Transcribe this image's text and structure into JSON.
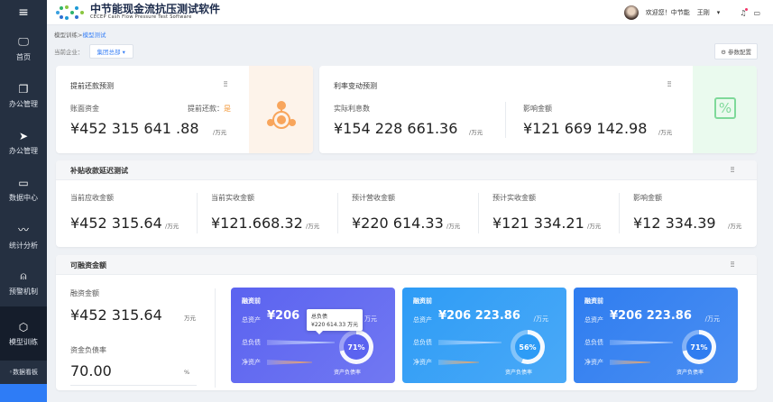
{
  "app": {
    "title": "中节能现金流抗压测试软件",
    "subtitle": "CECEP Cash Flow Pressure Test Software"
  },
  "header": {
    "welcome": "欢迎您！中节能",
    "username": "王刚",
    "icons": [
      "bell-icon",
      "message-icon"
    ]
  },
  "sidebar": {
    "items": [
      {
        "label": "首页",
        "icon": "monitor-icon"
      },
      {
        "label": "办公管理",
        "icon": "copy-icon"
      },
      {
        "label": "办公管理",
        "icon": "send-icon"
      },
      {
        "label": "数据中心",
        "icon": "folder-icon"
      },
      {
        "label": "统计分析",
        "icon": "chart-line-icon"
      },
      {
        "label": "预警机制",
        "icon": "alarm-icon"
      },
      {
        "label": "模型训练",
        "icon": "cube-icon",
        "active": true
      }
    ],
    "sub": "数据看板"
  },
  "breadcrumb": {
    "parent": "模型训练",
    "current": "模型测试"
  },
  "company": {
    "label": "当前企业：",
    "value": "集团总部"
  },
  "param_btn": "参数配置",
  "card1": {
    "title": "提前还款预测",
    "label": "账面资金",
    "flag_label": "提前还款：",
    "flag": "是",
    "value": "¥452 315 641 .88",
    "unit": "/万元",
    "accent": "#f4a460"
  },
  "card2": {
    "title": "利率变动预测",
    "label1": "实际利息数",
    "value1": "¥154 228 661.36",
    "unit1": "/万元",
    "label2": "影响金额",
    "value2": "¥121 669 142.98",
    "unit2": "/万元",
    "accent": "#6fcf8f"
  },
  "section2": {
    "title": "补贴收款延迟测试",
    "items": [
      {
        "label": "当前应收金额",
        "value": "¥452 315.64",
        "unit": "/万元"
      },
      {
        "label": "当前实收金额",
        "value": "¥121.668.32",
        "unit": "/万元"
      },
      {
        "label": "预计营收金额",
        "value": "¥220 614.33",
        "unit": "/万元"
      },
      {
        "label": "预计实收金额",
        "value": "¥121 334.21",
        "unit": "/万元"
      },
      {
        "label": "影响金额",
        "value": "¥12 334.39",
        "unit": "/万元"
      }
    ]
  },
  "section3": {
    "title": "可融资金额",
    "left": {
      "label1": "融资金额",
      "value1": "¥452 315.64",
      "unit1": "万元",
      "label2": "资金负债率",
      "value2": "70.00",
      "unit2": "%"
    },
    "cards": [
      {
        "title": "融资前",
        "assets_label": "总资产",
        "assets": "¥206",
        "unit": "万元",
        "debt_label": "总负债",
        "net_label": "净资产",
        "ratio": 71,
        "ratio_text": "71%",
        "ratio_label": "资产负债率",
        "tooltip_title": "总负债",
        "tooltip_value": "¥220 614.33",
        "tooltip_unit": "万元",
        "color": "#5b63f0"
      },
      {
        "title": "融资前",
        "assets_label": "总资产",
        "assets": "¥206 223.86",
        "unit": "/万元",
        "debt_label": "总负债",
        "net_label": "净资产",
        "ratio": 56,
        "ratio_text": "56%",
        "ratio_label": "资产负债率",
        "color": "#2e9cf6"
      },
      {
        "title": "融资前",
        "assets_label": "总资产",
        "assets": "¥206 223.86",
        "unit": "/万元",
        "debt_label": "总负债",
        "net_label": "净资产",
        "ratio": 71,
        "ratio_text": "71%",
        "ratio_label": "资产负债率",
        "color": "#2f7df0"
      }
    ]
  }
}
